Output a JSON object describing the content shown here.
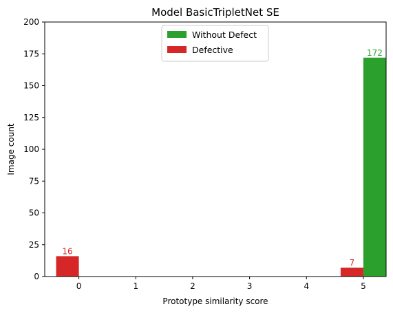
{
  "chart_data": {
    "type": "bar",
    "title": "Model BasicTripletNet SE",
    "xlabel": "Prototype similarity score",
    "ylabel": "Image count",
    "x_ticks": [
      "0",
      "1",
      "2",
      "3",
      "4",
      "5"
    ],
    "y_ticks": [
      "0",
      "25",
      "50",
      "75",
      "100",
      "125",
      "150",
      "175",
      "200"
    ],
    "xlim": [
      -0.6,
      5.4
    ],
    "ylim": [
      0,
      200
    ],
    "grid": false,
    "legend_position": "top-center",
    "series": [
      {
        "name": "Without Defect",
        "color": "#2ca02c",
        "offset": "right",
        "points": [
          {
            "x": 5,
            "y": 172,
            "label": "172"
          }
        ]
      },
      {
        "name": "Defective",
        "color": "#d62728",
        "offset": "left",
        "points": [
          {
            "x": 0,
            "y": 16,
            "label": "16"
          },
          {
            "x": 5,
            "y": 7,
            "label": "7"
          }
        ]
      }
    ]
  }
}
